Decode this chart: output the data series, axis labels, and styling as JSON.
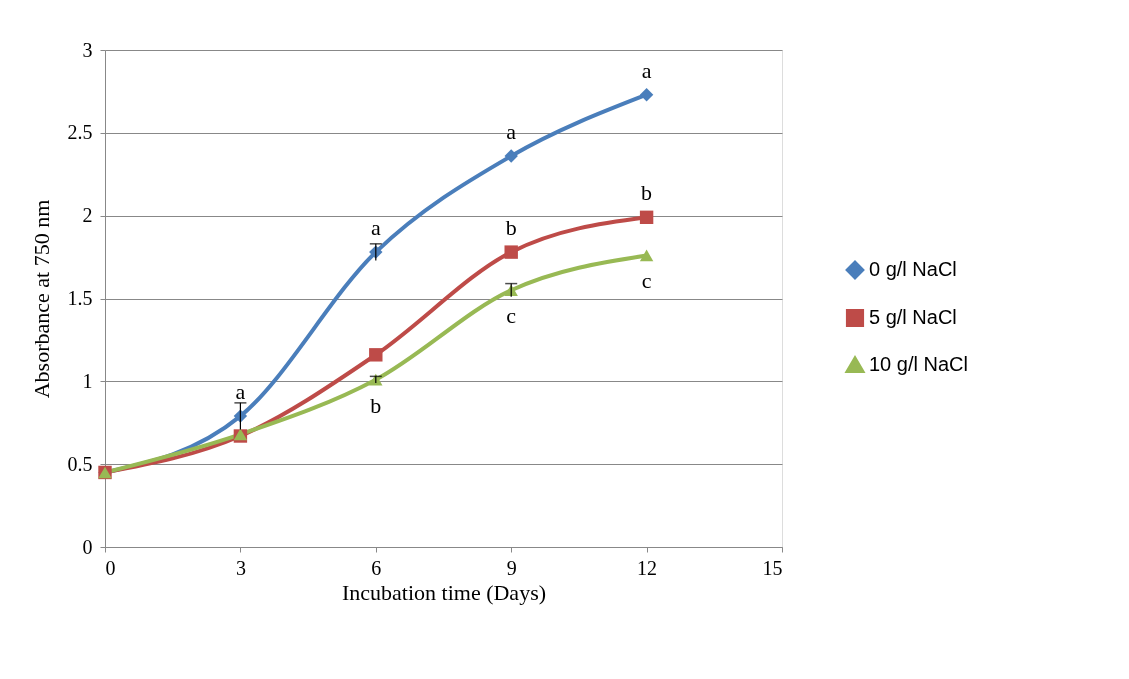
{
  "chart_data": {
    "type": "line",
    "xlabel": "Incubation time (Days)",
    "ylabel": "Absorbance  at 750 nm",
    "x": [
      0,
      3,
      6,
      9,
      12
    ],
    "series": [
      {
        "name": "0 g/l NaCl",
        "color": "#4a7ebb",
        "marker": "diamond",
        "values": [
          0.45,
          0.79,
          1.78,
          2.36,
          2.73
        ],
        "errors": [
          null,
          0.08,
          0.05,
          null,
          null
        ]
      },
      {
        "name": "5 g/l NaCl",
        "color": "#be4b48",
        "marker": "square",
        "values": [
          0.45,
          0.67,
          1.16,
          1.78,
          1.99
        ]
      },
      {
        "name": "10 g/l NaCl",
        "color": "#98b954",
        "marker": "triangle",
        "values": [
          0.45,
          0.68,
          1.01,
          1.55,
          1.76
        ],
        "errors": [
          null,
          null,
          0.02,
          0.04,
          null
        ]
      }
    ],
    "xlim": [
      0,
      15
    ],
    "xticks": [
      0,
      3,
      6,
      9,
      12,
      15
    ],
    "ylim": [
      0,
      3
    ],
    "yticks": [
      0,
      0.5,
      1,
      1.5,
      2,
      2.5,
      3
    ],
    "grid": "y",
    "legend": "right",
    "line_style": "solid",
    "annotations": [
      {
        "text": "a",
        "x": 3,
        "y": 0.79
      },
      {
        "text": "a",
        "x": 6,
        "y": 1.78
      },
      {
        "text": "a",
        "x": 9,
        "y": 2.36
      },
      {
        "text": "a",
        "x": 12,
        "y": 2.73
      },
      {
        "text": "b",
        "x": 9,
        "y": 1.78
      },
      {
        "text": "b",
        "x": 12,
        "y": 1.99
      },
      {
        "text": "b",
        "x": 6,
        "y": 1.01
      },
      {
        "text": "c",
        "x": 9,
        "y": 1.55
      },
      {
        "text": "c",
        "x": 12,
        "y": 1.76
      }
    ]
  }
}
